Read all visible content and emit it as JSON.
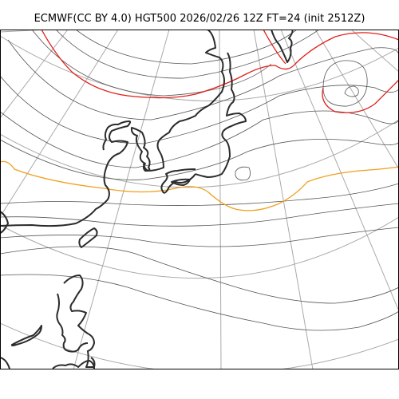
{
  "title": "ECMWF(CC BY 4.0) HGT500 2026/02/26 12Z FT=24 (init 2512Z)",
  "colors": {
    "background": "#ffffff",
    "coastline": "#2b2b2b",
    "graticule": "#aaaaaa",
    "contour": "#555555",
    "contour_highlight_5400": "#e0201a",
    "contour_highlight_5700": "#f0a020",
    "frame": "#000000"
  },
  "map": {
    "variable": "HGT500",
    "projection": "polar-stereographic",
    "region": "east-asia-north-pacific"
  }
}
